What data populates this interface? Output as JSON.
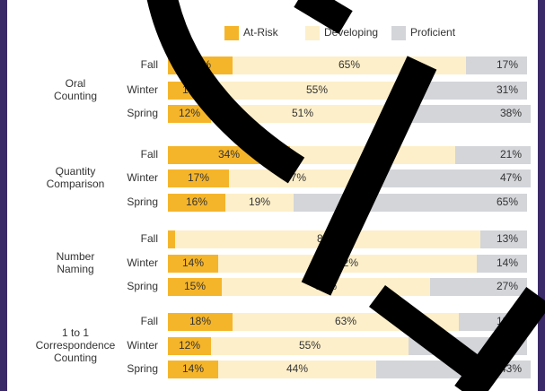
{
  "chart_data": {
    "type": "stacked-bar",
    "groups": [
      [
        "Oral",
        "Counting"
      ],
      [
        "Quantity",
        "Comparison"
      ],
      [
        "Number",
        "Naming"
      ],
      [
        "1 to 1",
        "Correspondence",
        "Counting"
      ]
    ],
    "categories": [
      "Fall",
      "Winter",
      "Spring",
      "Fall",
      "Winter",
      "Spring",
      "Fall",
      "Winter",
      "Spring",
      "Fall",
      "Winter",
      "Spring"
    ],
    "series": [
      {
        "name": "At-Risk",
        "color": "#f5b52a",
        "values": [
          18,
          14,
          12,
          34,
          17,
          16,
          2,
          14,
          15,
          18,
          12,
          14
        ],
        "value_labels": [
          "18%",
          "14%",
          "12%",
          "34%",
          "17%",
          "16%",
          "2%",
          "14%",
          "15%",
          "18%",
          "12%",
          "14%"
        ]
      },
      {
        "name": "Developing",
        "color": "#fdefc9",
        "values": [
          65,
          55,
          51,
          46,
          37,
          19,
          85,
          72,
          58,
          63,
          55,
          44
        ],
        "value_labels": [
          "65%",
          "55%",
          "51%",
          "46%",
          "37%",
          "19%",
          "85%",
          "72%",
          "58%",
          "63%",
          "55%",
          "44%"
        ]
      },
      {
        "name": "Proficient",
        "color": "#d3d5d9",
        "values": [
          17,
          31,
          38,
          21,
          47,
          65,
          13,
          14,
          27,
          19,
          33,
          43
        ],
        "value_labels": [
          "17%",
          "31%",
          "38%",
          "21%",
          "47%",
          "65%",
          "13%",
          "14%",
          "27%",
          "19%",
          "33%",
          "43%"
        ]
      }
    ]
  }
}
